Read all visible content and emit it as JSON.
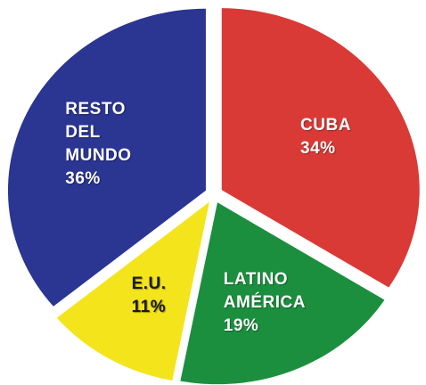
{
  "chart_data": {
    "type": "pie",
    "categories": [
      "CUBA",
      "LATINO AMÉRICA",
      "E.U.",
      "RESTO DEL MUNDO"
    ],
    "values": [
      34,
      19,
      11,
      36
    ],
    "value_labels": [
      "34%",
      "19%",
      "11%",
      "36%"
    ],
    "colors": [
      "#d93a36",
      "#1b8f3e",
      "#f4e41c",
      "#2b3592"
    ],
    "label_colors": [
      "#ffffff",
      "#ffffff",
      "#1a1a1a",
      "#ffffff"
    ],
    "start_angle": 0,
    "direction": "clockwise",
    "exploded": true
  }
}
